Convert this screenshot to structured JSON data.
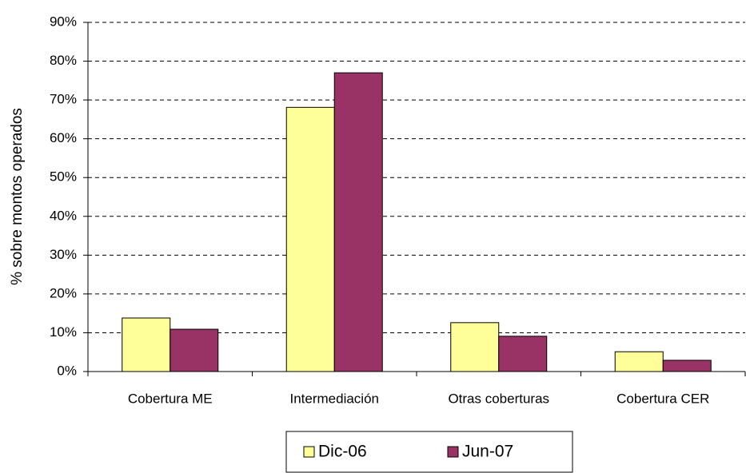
{
  "chart_data": {
    "type": "bar",
    "y_label": "% sobre montos operados",
    "categories": [
      "Cobertura ME",
      "Intermediación",
      "Otras coberturas",
      "Cobertura CER"
    ],
    "series": [
      {
        "name": "Dic-06",
        "color": "#ffff99",
        "values": [
          13.8,
          68.1,
          12.6,
          5.1
        ]
      },
      {
        "name": "Jun-07",
        "color": "#993366",
        "values": [
          10.9,
          77,
          9.1,
          2.9
        ]
      }
    ],
    "ylim": [
      0,
      90
    ],
    "yticks": [
      {
        "value": 0,
        "label": "0%"
      },
      {
        "value": 10,
        "label": "10%"
      },
      {
        "value": 20,
        "label": "20%"
      },
      {
        "value": 30,
        "label": "30%"
      },
      {
        "value": 40,
        "label": "40%"
      },
      {
        "value": 50,
        "label": "50%"
      },
      {
        "value": 60,
        "label": "60%"
      },
      {
        "value": 70,
        "label": "70%"
      },
      {
        "value": 80,
        "label": "80%"
      },
      {
        "value": 90,
        "label": "90%"
      }
    ],
    "grid": true,
    "legend": "bottom"
  }
}
